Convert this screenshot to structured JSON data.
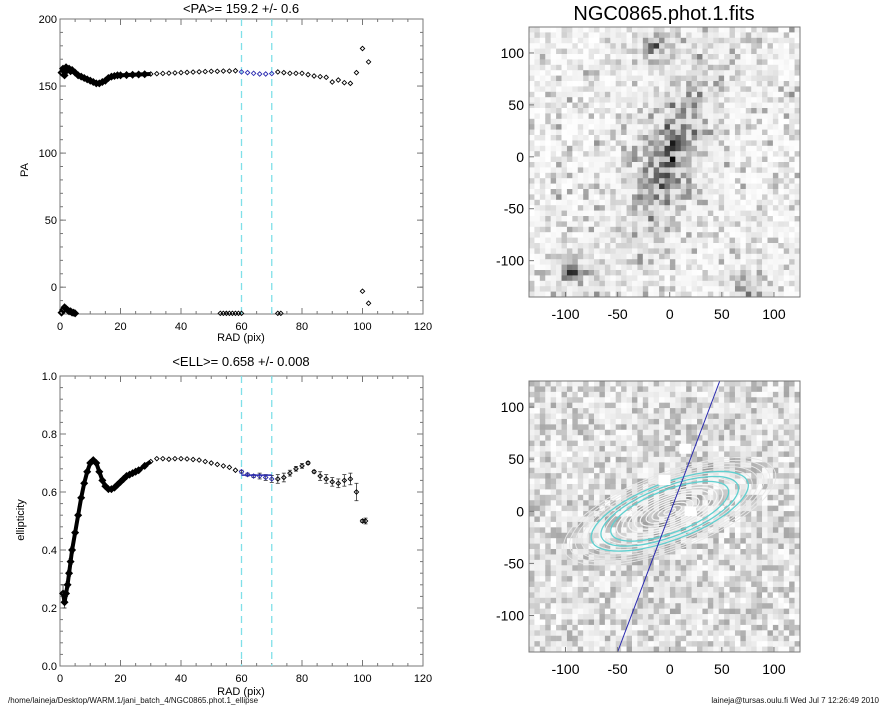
{
  "footer": {
    "path": "/home/laineja/Desktop/WARM.1/jani_batch_4/NGC0865.phot.1_ellipse",
    "user_stamp": "laineja@tursas.oulu.fi  Wed Jul  7 12:26:49 2010"
  },
  "colors": {
    "fit_range_lines": "#7fe0e8",
    "fit_points": "#2a2ab0",
    "data_points": "#000000",
    "contours_cyan": "#5fd0d0",
    "axis": "#777777"
  },
  "chart_data": [
    {
      "type": "scatter",
      "title": "<PA>= 159.2 +/-   0.6",
      "xlabel": "RAD (pix)",
      "ylabel": "PA",
      "xlim": [
        0,
        120
      ],
      "ylim": [
        -20,
        200
      ],
      "xticks": [
        "0",
        "20",
        "40",
        "60",
        "80",
        "100",
        "120"
      ],
      "yticks": [
        "0",
        "50",
        "100",
        "150",
        "200"
      ],
      "fit_range": [
        60,
        70
      ],
      "mean": 159.2,
      "error": 0.6,
      "series": [
        {
          "name": "PA",
          "x": [
            0.5,
            1,
            1.5,
            2,
            2.5,
            3,
            3.5,
            4,
            5,
            6,
            7,
            8,
            9,
            10,
            11,
            12,
            13,
            14,
            15,
            16,
            17,
            18,
            19,
            20,
            22,
            24,
            26,
            28,
            30,
            32,
            34,
            36,
            38,
            40,
            42,
            44,
            46,
            48,
            50,
            52,
            54,
            56,
            58,
            60,
            62,
            64,
            66,
            68,
            70,
            72,
            74,
            76,
            78,
            80,
            82,
            84,
            86,
            88,
            90,
            92,
            94,
            96,
            98,
            100,
            102
          ],
          "y": [
            160,
            163,
            158,
            164,
            162,
            163,
            161,
            162,
            160,
            158,
            157,
            156,
            155,
            154,
            153,
            152,
            152,
            153,
            154,
            156,
            157,
            157.5,
            158,
            158,
            158.2,
            158.4,
            158.6,
            158.8,
            159,
            159.2,
            159.4,
            159.6,
            159.8,
            160,
            160.2,
            160.4,
            160.6,
            160.8,
            161,
            161,
            161.2,
            161.2,
            161.4,
            160.5,
            160,
            159.5,
            159,
            159,
            159.3,
            160.5,
            160,
            159.5,
            159.5,
            159.5,
            158.5,
            157.5,
            157,
            156.5,
            153,
            154.5,
            152.5,
            152,
            160,
            178,
            168
          ]
        },
        {
          "name": "PA-low",
          "x": [
            0.5,
            1,
            1.5,
            2,
            2.5,
            3,
            3.5,
            4,
            4.5,
            5,
            53,
            54,
            55,
            56,
            57,
            58,
            59,
            60,
            72,
            73,
            100,
            102
          ],
          "y": [
            -19,
            -17,
            -15,
            -16,
            -17,
            -18,
            -18,
            -19,
            -19,
            -19.5,
            -19.5,
            -19.5,
            -19.5,
            -19.5,
            -19.5,
            -19.5,
            -19.5,
            -19.5,
            -19.5,
            -19.5,
            -3,
            -12
          ]
        }
      ]
    },
    {
      "type": "scatter",
      "title": "<ELL>= 0.658 +/-  0.008",
      "xlabel": "RAD (pix)",
      "ylabel": "ellipticity",
      "xlim": [
        0,
        120
      ],
      "ylim": [
        0,
        1
      ],
      "xticks": [
        "0",
        "20",
        "40",
        "60",
        "80",
        "100",
        "120"
      ],
      "yticks": [
        "0.0",
        "0.2",
        "0.4",
        "0.6",
        "0.8",
        "1.0"
      ],
      "fit_range": [
        60,
        70
      ],
      "mean": 0.658,
      "error": 0.008,
      "series": [
        {
          "name": "ELL",
          "x": [
            1,
            1.5,
            2,
            2.5,
            3,
            3.5,
            4,
            5,
            6,
            7,
            8,
            9,
            10,
            11,
            12,
            13,
            14,
            15,
            16,
            17,
            18,
            19,
            20,
            21,
            22,
            23,
            24,
            25,
            26,
            28,
            30,
            32,
            34,
            36,
            38,
            40,
            42,
            44,
            46,
            48,
            50,
            52,
            54,
            56,
            58,
            60,
            62,
            64,
            66,
            68,
            70,
            72,
            74,
            76,
            78,
            80,
            82,
            84,
            86,
            88,
            90,
            92,
            94,
            96,
            98,
            100,
            101
          ],
          "y": [
            0.25,
            0.22,
            0.25,
            0.28,
            0.32,
            0.36,
            0.4,
            0.46,
            0.52,
            0.58,
            0.63,
            0.67,
            0.7,
            0.71,
            0.7,
            0.67,
            0.64,
            0.62,
            0.61,
            0.61,
            0.615,
            0.625,
            0.635,
            0.645,
            0.655,
            0.66,
            0.665,
            0.67,
            0.675,
            0.69,
            0.705,
            0.715,
            0.715,
            0.713,
            0.715,
            0.715,
            0.714,
            0.712,
            0.71,
            0.705,
            0.7,
            0.695,
            0.69,
            0.685,
            0.675,
            0.67,
            0.66,
            0.655,
            0.655,
            0.65,
            0.645,
            0.645,
            0.65,
            0.665,
            0.68,
            0.69,
            0.7,
            0.67,
            0.655,
            0.645,
            0.635,
            0.63,
            0.64,
            0.645,
            0.6,
            0.5,
            0.5
          ],
          "err": [
            0.03,
            0.02,
            0.01,
            0.01,
            0.01,
            0.01,
            0.01,
            0,
            0,
            0,
            0,
            0,
            0,
            0,
            0,
            0,
            0,
            0,
            0,
            0,
            0,
            0,
            0,
            0,
            0,
            0,
            0,
            0,
            0,
            0,
            0,
            0,
            0,
            0,
            0,
            0,
            0,
            0,
            0,
            0,
            0,
            0,
            0,
            0,
            0,
            0.005,
            0.005,
            0.005,
            0.01,
            0.01,
            0.012,
            0.015,
            0.015,
            0.01,
            0.008,
            0.008,
            0.005,
            0.005,
            0.015,
            0.015,
            0.015,
            0.015,
            0.02,
            0.02,
            0.03,
            0.005,
            0.01
          ]
        }
      ]
    },
    {
      "type": "heatmap",
      "title": "NGC0865.phot.1.fits",
      "xlim": [
        -135,
        125
      ],
      "ylim": [
        -135,
        125
      ],
      "xticks": [
        "-100",
        "-50",
        "0",
        "50",
        "100"
      ],
      "yticks": [
        "-100",
        "-50",
        "0",
        "50",
        "100"
      ],
      "galaxy": {
        "center": [
          0,
          0
        ],
        "pa_deg": 159.2,
        "ellipticity": 0.658
      },
      "stars": [
        [
          -12,
          108
        ],
        [
          75,
          -125
        ],
        [
          -95,
          -112
        ]
      ]
    },
    {
      "type": "heatmap",
      "title": "",
      "xlim": [
        -135,
        125
      ],
      "ylim": [
        -135,
        125
      ],
      "xticks": [
        "-100",
        "-50",
        "0",
        "50",
        "100"
      ],
      "yticks": [
        "-100",
        "-50",
        "0",
        "50",
        "100"
      ],
      "contours": {
        "count": 18,
        "pa_deg": 159.2,
        "ellipticity": 0.658,
        "cyan_semi_major": [
          60,
          70,
          80
        ]
      },
      "major_axis_line": {
        "pa_deg": 159.2
      }
    }
  ]
}
